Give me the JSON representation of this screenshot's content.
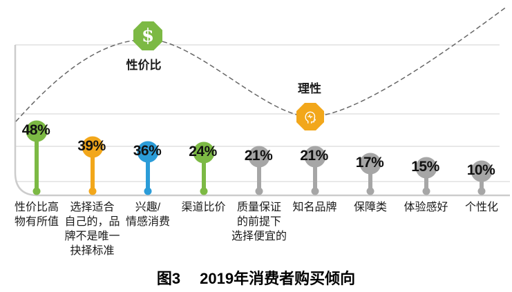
{
  "chart_data": {
    "type": "bar",
    "subtype": "lollipop",
    "title": "图3 2019年消费者购买倾向",
    "categories": [
      "性价比高物有所值",
      "选择适合自己的，品牌不是唯一抉择标准",
      "兴趣/情感消费",
      "渠道比价",
      "质量保证的前提下选择便宜的",
      "知名品牌",
      "保障类",
      "体验感好",
      "个性化"
    ],
    "category_lines": [
      [
        "性价比高",
        "物有所值"
      ],
      [
        "选择适合",
        "自己的，品",
        "牌不是唯一",
        "抉择标准"
      ],
      [
        "兴趣/",
        "情感消费"
      ],
      [
        "渠道比价"
      ],
      [
        "质量保证",
        "的前提下",
        "选择便宜的"
      ],
      [
        "知名品牌"
      ],
      [
        "保障类"
      ],
      [
        "体验感好"
      ],
      [
        "个性化"
      ]
    ],
    "values": [
      48,
      39,
      36,
      24,
      21,
      21,
      17,
      15,
      10
    ],
    "value_labels": [
      "48%",
      "39%",
      "36%",
      "24%",
      "21%",
      "21%",
      "17%",
      "15%",
      "10%"
    ],
    "colors": [
      "#7CB944",
      "#F2A71B",
      "#2B9CD8",
      "#7CB944",
      "#A6A6A6",
      "#A6A6A6",
      "#A6A6A6",
      "#A6A6A6",
      "#A6A6A6"
    ],
    "grid": "horizontal, light gray, no y-axis tick labels",
    "legend": "none",
    "trend_line": "dashed gray curve rising to a peak above 性价比, dipping to a trough at 理性, rising again to top-right",
    "annotations": [
      {
        "position": "peak",
        "label": "性价比",
        "symbol": "$",
        "icon": "dollar-octagon",
        "color": "#7CB944"
      },
      {
        "position": "trough",
        "label": "理性",
        "icon": "rational-head-octagon",
        "color": "#F2A71B"
      }
    ]
  },
  "caption": {
    "figure_label": "图3",
    "title": "2019年消费者购买倾向"
  },
  "ui_colors": {
    "grid_line": "#e8e8e8",
    "axis_frame": "#cccccc",
    "trend_dash": "#666666",
    "text": "#1a1a1a"
  }
}
